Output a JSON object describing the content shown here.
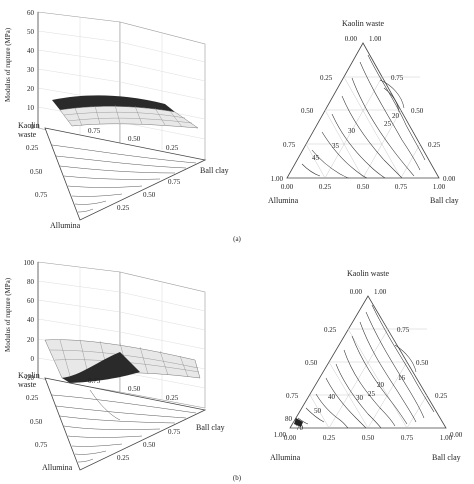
{
  "figure": {
    "panels": [
      {
        "id": "a",
        "caption": "(a)",
        "surface3d": {
          "z_axis_label": "Modulus of rupture (MPa)",
          "z_ticks": [
            "60",
            "50",
            "40",
            "30",
            "20",
            "10",
            "0"
          ],
          "kaolin_label_1": "Kaolin",
          "kaolin_label_2": "waste",
          "top_edge_ticks": [
            "0.75",
            "0.50",
            "0.25"
          ],
          "left_edge_ticks": [
            "0.25",
            "0.50",
            "0.75"
          ],
          "right_edge_ticks": [
            "0.75",
            "0.50",
            "0.25"
          ],
          "left_corner_label": "Allumina",
          "right_corner_label": "Ball clay"
        },
        "ternary": {
          "top_label": "Kaolin waste",
          "apex_left": "0.00",
          "apex_right": "1.00",
          "left_side_ticks": [
            "0.25",
            "0.50",
            "0.75"
          ],
          "right_side_ticks": [
            "0.75",
            "0.50",
            "0.25"
          ],
          "bottom_ticks": [
            "0.00",
            "0.25",
            "0.50",
            "0.75",
            "1.00"
          ],
          "bl_corner": "1.00",
          "br_corner": "0.00",
          "contour_labels": [
            "20",
            "25",
            "30",
            "35",
            "45"
          ],
          "left_label": "Allumina",
          "right_label": "Ball clay"
        }
      },
      {
        "id": "b",
        "caption": "(b)",
        "surface3d": {
          "z_axis_label": "Modulus of rupture (MPa)",
          "z_ticks": [
            "100",
            "80",
            "60",
            "40",
            "20",
            "0",
            "-20"
          ],
          "kaolin_label_1": "Kaolin",
          "kaolin_label_2": "waste",
          "top_edge_ticks": [
            "0.75",
            "0.50",
            "0.25"
          ],
          "left_edge_ticks": [
            "0.25",
            "0.50",
            "0.75"
          ],
          "right_edge_ticks": [
            "0.75",
            "0.50",
            "0.25"
          ],
          "left_corner_label": "Allumina",
          "right_corner_label": "Ball clay"
        },
        "ternary": {
          "top_label": "Kaolin waste",
          "apex_left": "0.00",
          "apex_right": "1.00",
          "left_side_ticks": [
            "0.25",
            "0.50",
            "0.75"
          ],
          "right_side_ticks": [
            "0.75",
            "0.50",
            "0.25"
          ],
          "bottom_ticks": [
            "0.00",
            "0.25",
            "0.50",
            "0.75",
            "1.00"
          ],
          "bl_corner": "1.00",
          "br_corner": "0.00",
          "contour_labels": [
            "16",
            "20",
            "25",
            "30",
            "40",
            "50",
            "70",
            "80"
          ],
          "left_label": "Allumina",
          "right_label": "Ball clay"
        }
      }
    ]
  }
}
